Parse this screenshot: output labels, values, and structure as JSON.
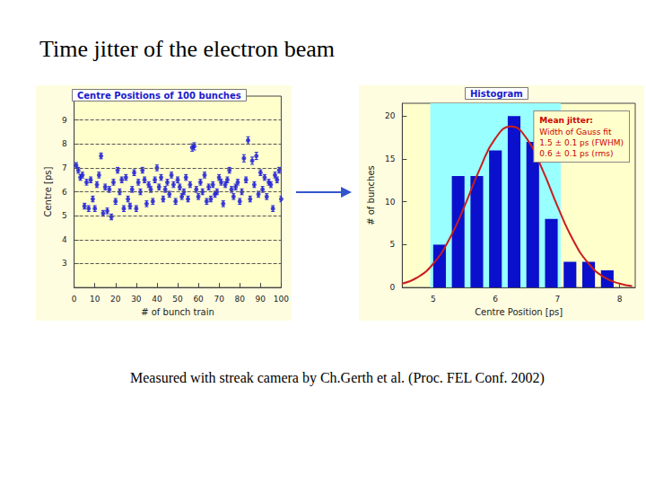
{
  "title": "Time jitter of the electron beam",
  "caption": "Measured with streak camera by Ch.Gerth et al. (Proc. FEL Conf. 2002)",
  "chart_data": [
    {
      "type": "scatter",
      "title": "Centre Positions of 100 bunches",
      "x_label": "# of bunch train",
      "y_label": "Centre [ps]",
      "x": [
        1,
        2,
        3,
        4,
        5,
        6,
        7,
        8,
        9,
        10,
        11,
        12,
        13,
        14,
        15,
        16,
        17,
        18,
        19,
        20,
        21,
        22,
        23,
        24,
        25,
        26,
        27,
        28,
        29,
        30,
        31,
        32,
        33,
        34,
        35,
        36,
        37,
        38,
        39,
        40,
        41,
        42,
        43,
        44,
        45,
        46,
        47,
        48,
        49,
        50,
        51,
        52,
        53,
        54,
        55,
        56,
        57,
        58,
        59,
        60,
        61,
        62,
        63,
        64,
        65,
        66,
        67,
        68,
        69,
        70,
        71,
        72,
        73,
        74,
        75,
        76,
        77,
        78,
        79,
        80,
        81,
        82,
        83,
        84,
        85,
        86,
        87,
        88,
        89,
        90,
        91,
        92,
        93,
        94,
        95,
        96,
        97,
        98,
        99,
        100
      ],
      "values": [
        7.1,
        6.9,
        6.6,
        6.7,
        5.4,
        6.4,
        5.3,
        6.5,
        5.7,
        5.3,
        6.3,
        6.7,
        7.5,
        5.1,
        6.2,
        5.2,
        6.1,
        4.95,
        6.4,
        5.6,
        6.9,
        6.0,
        6.5,
        5.3,
        6.6,
        5.7,
        5.4,
        6.1,
        6.8,
        5.3,
        6.4,
        6.0,
        6.9,
        6.5,
        5.5,
        6.3,
        6.1,
        5.6,
        6.5,
        7.0,
        6.2,
        6.6,
        5.7,
        6.1,
        6.4,
        5.9,
        6.7,
        6.3,
        5.6,
        6.5,
        6.2,
        5.8,
        6.0,
        6.6,
        5.7,
        6.3,
        7.85,
        7.9,
        6.1,
        5.8,
        6.4,
        6.0,
        6.7,
        5.6,
        6.2,
        5.7,
        6.3,
        5.9,
        6.0,
        6.6,
        6.4,
        5.5,
        6.3,
        6.5,
        6.9,
        6.1,
        5.8,
        6.2,
        6.4,
        5.6,
        6.0,
        7.4,
        6.5,
        8.15,
        5.7,
        7.3,
        6.3,
        7.5,
        5.9,
        6.8,
        6.1,
        6.6,
        5.8,
        6.4,
        6.3,
        5.3,
        6.7,
        6.5,
        6.9,
        5.7
      ],
      "errors": [
        0.12,
        0.12,
        0.12,
        0.12,
        0.12,
        0.12,
        0.12,
        0.12,
        0.12,
        0.12,
        0.12,
        0.12,
        0.12,
        0.12,
        0.12,
        0.12,
        0.12,
        0.12,
        0.12,
        0.12,
        0.12,
        0.12,
        0.12,
        0.12,
        0.12,
        0.12,
        0.12,
        0.12,
        0.12,
        0.12,
        0.12,
        0.12,
        0.12,
        0.12,
        0.12,
        0.12,
        0.12,
        0.12,
        0.12,
        0.12,
        0.12,
        0.12,
        0.12,
        0.12,
        0.12,
        0.12,
        0.12,
        0.12,
        0.12,
        0.12,
        0.12,
        0.12,
        0.12,
        0.12,
        0.12,
        0.12,
        0.15,
        0.15,
        0.12,
        0.12,
        0.12,
        0.12,
        0.12,
        0.12,
        0.12,
        0.12,
        0.12,
        0.12,
        0.12,
        0.12,
        0.12,
        0.12,
        0.12,
        0.12,
        0.12,
        0.12,
        0.12,
        0.12,
        0.12,
        0.12,
        0.12,
        0.15,
        0.12,
        0.15,
        0.12,
        0.15,
        0.12,
        0.15,
        0.12,
        0.12,
        0.12,
        0.12,
        0.12,
        0.12,
        0.12,
        0.12,
        0.12,
        0.12,
        0.12,
        0.12
      ],
      "color": "#1f1fd6",
      "marker": "circle",
      "xlim": [
        0,
        100
      ],
      "xticks": [
        0,
        10,
        20,
        30,
        40,
        50,
        60,
        70,
        80,
        90,
        100
      ],
      "ylim": [
        2,
        10
      ],
      "yticks": [
        3,
        4,
        5,
        6,
        7,
        8,
        9
      ],
      "grid": true
    },
    {
      "type": "histogram",
      "title": "Histogram",
      "x_label": "Centre Position [ps]",
      "y_label": "# of bunches",
      "bins": [
        4.95,
        5.25,
        5.55,
        5.85,
        6.15,
        6.45,
        6.75,
        7.05,
        7.35,
        7.65,
        7.95
      ],
      "counts": [
        5,
        13,
        13,
        16,
        20,
        17,
        8,
        3,
        3,
        2
      ],
      "color": "#0a10cc",
      "fit": {
        "type": "line",
        "color": "#c81e1e",
        "x": [
          4.5,
          4.75,
          5.0,
          5.25,
          5.5,
          5.75,
          6.0,
          6.25,
          6.5,
          6.75,
          7.0,
          7.25,
          7.5,
          7.75,
          8.0,
          8.2
        ],
        "values": [
          0.45,
          1.2,
          2.79,
          5.55,
          9.46,
          13.86,
          17.42,
          18.8,
          17.42,
          13.86,
          9.46,
          5.55,
          2.79,
          1.2,
          0.45,
          0.18
        ]
      },
      "fit_range": [
        4.95,
        7.05
      ],
      "annotation": {
        "title": "Mean jitter:",
        "lines": [
          "Width of Gauss fit",
          "1.5 ± 0.1 ps (FWHM)",
          "0.6 ± 0.1 ps (rms)"
        ]
      },
      "xlim": [
        4.5,
        8.25
      ],
      "xticks": [
        5,
        6,
        7,
        8
      ],
      "ylim": [
        0,
        21.5
      ],
      "yticks": [
        0,
        5,
        10,
        15,
        20
      ],
      "grid": false
    }
  ]
}
